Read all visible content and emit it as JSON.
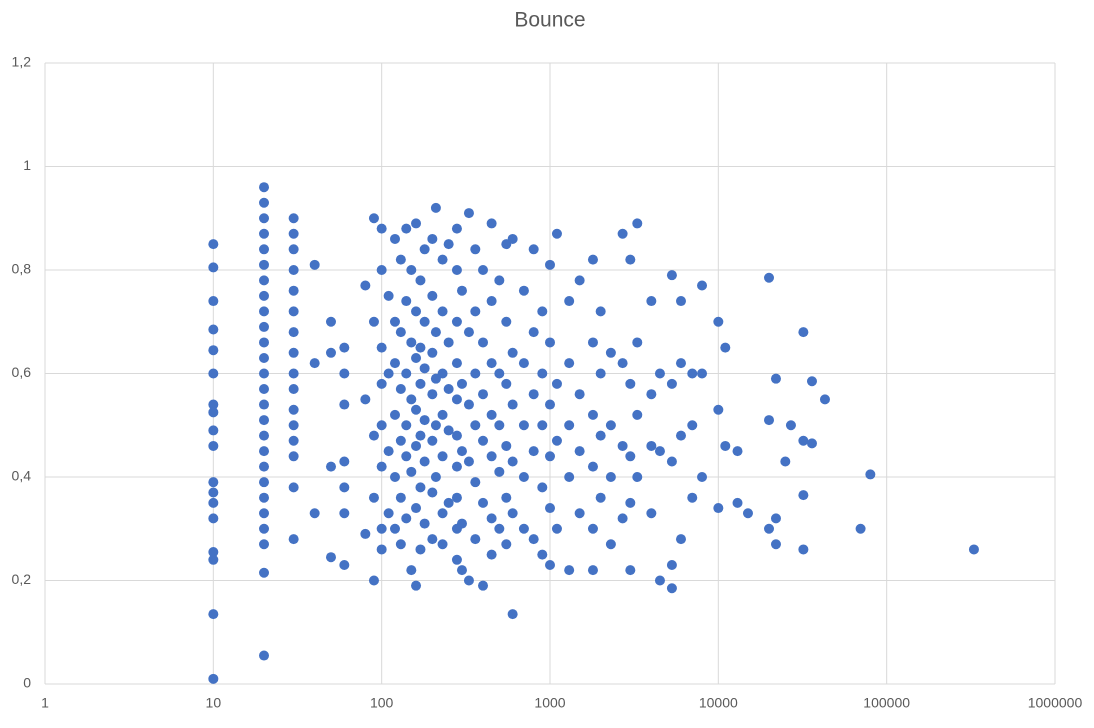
{
  "chart_data": {
    "type": "scatter",
    "title": "Bounce",
    "color": "#4472c4",
    "xscale": "log",
    "grid": true,
    "xlim": [
      1,
      1000000
    ],
    "xticks": [
      1,
      10,
      100,
      1000,
      10000,
      100000,
      1000000
    ],
    "ylim": [
      0,
      1.2
    ],
    "yticks": [
      0,
      {
        "value": 0.2,
        "label": "0,2"
      },
      {
        "value": 0.4,
        "label": "0,4"
      },
      {
        "value": 0.6,
        "label": "0,6"
      },
      {
        "value": 0.8,
        "label": "0,8"
      },
      1,
      {
        "value": 1.2,
        "label": "1,2"
      }
    ],
    "x": [
      10,
      10,
      10,
      10,
      10,
      10,
      10,
      10,
      10,
      10,
      10,
      10,
      10,
      10,
      10,
      10,
      10,
      10,
      20,
      20,
      20,
      20,
      20,
      20,
      20,
      20,
      20,
      20,
      20,
      20,
      20,
      20,
      20,
      20,
      20,
      20,
      20,
      20,
      20,
      20,
      20,
      20,
      20,
      20,
      30,
      30,
      30,
      30,
      30,
      30,
      30,
      30,
      30,
      30,
      30,
      30,
      30,
      30,
      30,
      30,
      40,
      40,
      40,
      50,
      50,
      50,
      50,
      60,
      60,
      60,
      60,
      60,
      60,
      60,
      80,
      80,
      80,
      90,
      90,
      90,
      90,
      90,
      100,
      100,
      100,
      100,
      100,
      100,
      100,
      100,
      110,
      110,
      110,
      110,
      120,
      120,
      120,
      120,
      120,
      120,
      130,
      130,
      130,
      130,
      130,
      130,
      140,
      140,
      140,
      140,
      140,
      140,
      150,
      150,
      150,
      150,
      150,
      160,
      160,
      160,
      160,
      160,
      160,
      160,
      170,
      170,
      170,
      170,
      170,
      170,
      180,
      180,
      180,
      180,
      180,
      180,
      200,
      200,
      200,
      200,
      200,
      200,
      200,
      210,
      210,
      210,
      210,
      210,
      230,
      230,
      230,
      230,
      230,
      230,
      230,
      250,
      250,
      250,
      250,
      250,
      280,
      280,
      280,
      280,
      280,
      280,
      280,
      280,
      280,
      280,
      300,
      300,
      300,
      300,
      300,
      330,
      330,
      330,
      330,
      330,
      360,
      360,
      360,
      360,
      360,
      360,
      400,
      400,
      400,
      400,
      400,
      400,
      450,
      450,
      450,
      450,
      450,
      450,
      450,
      500,
      500,
      500,
      500,
      500,
      550,
      550,
      550,
      550,
      550,
      550,
      600,
      600,
      600,
      600,
      600,
      600,
      700,
      700,
      700,
      700,
      700,
      800,
      800,
      800,
      800,
      800,
      900,
      900,
      900,
      900,
      900,
      1000,
      1000,
      1000,
      1000,
      1000,
      1000,
      1100,
      1100,
      1100,
      1100,
      1300,
      1300,
      1300,
      1300,
      1300,
      1500,
      1500,
      1500,
      1500,
      1800,
      1800,
      1800,
      1800,
      1800,
      1800,
      2000,
      2000,
      2000,
      2000,
      2300,
      2300,
      2300,
      2300,
      2700,
      2700,
      2700,
      2700,
      3000,
      3000,
      3000,
      3000,
      3000,
      3300,
      3300,
      3300,
      3300,
      4000,
      4000,
      4000,
      4000,
      4500,
      4500,
      4500,
      5300,
      5300,
      5300,
      5300,
      5300,
      6000,
      6000,
      6000,
      6000,
      7000,
      7000,
      7000,
      8000,
      8000,
      8000,
      10000,
      10000,
      10000,
      11000,
      11000,
      13000,
      13000,
      15000,
      20000,
      20000,
      20000,
      22000,
      22000,
      22000,
      25000,
      27000,
      32000,
      32000,
      32000,
      32000,
      36000,
      36000,
      43000,
      70000,
      80000,
      330000
    ],
    "values": [
      0.85,
      0.805,
      0.74,
      0.685,
      0.645,
      0.6,
      0.54,
      0.525,
      0.49,
      0.46,
      0.39,
      0.37,
      0.35,
      0.32,
      0.255,
      0.24,
      0.135,
      0.01,
      0.96,
      0.93,
      0.9,
      0.87,
      0.84,
      0.81,
      0.78,
      0.75,
      0.72,
      0.69,
      0.66,
      0.63,
      0.6,
      0.57,
      0.54,
      0.51,
      0.48,
      0.45,
      0.42,
      0.39,
      0.36,
      0.33,
      0.3,
      0.27,
      0.215,
      0.055,
      0.9,
      0.87,
      0.84,
      0.8,
      0.76,
      0.72,
      0.68,
      0.64,
      0.6,
      0.57,
      0.53,
      0.5,
      0.47,
      0.44,
      0.38,
      0.28,
      0.81,
      0.62,
      0.33,
      0.7,
      0.64,
      0.42,
      0.245,
      0.65,
      0.6,
      0.54,
      0.43,
      0.38,
      0.33,
      0.23,
      0.77,
      0.55,
      0.29,
      0.9,
      0.7,
      0.48,
      0.36,
      0.2,
      0.88,
      0.8,
      0.65,
      0.58,
      0.5,
      0.42,
      0.3,
      0.26,
      0.75,
      0.6,
      0.45,
      0.33,
      0.86,
      0.7,
      0.62,
      0.52,
      0.4,
      0.3,
      0.82,
      0.68,
      0.57,
      0.47,
      0.36,
      0.27,
      0.88,
      0.74,
      0.6,
      0.5,
      0.44,
      0.32,
      0.8,
      0.66,
      0.55,
      0.41,
      0.22,
      0.89,
      0.72,
      0.63,
      0.53,
      0.46,
      0.34,
      0.19,
      0.78,
      0.65,
      0.58,
      0.48,
      0.38,
      0.26,
      0.84,
      0.7,
      0.61,
      0.51,
      0.43,
      0.31,
      0.86,
      0.75,
      0.64,
      0.56,
      0.47,
      0.37,
      0.28,
      0.92,
      0.68,
      0.59,
      0.5,
      0.4,
      0.82,
      0.72,
      0.6,
      0.52,
      0.44,
      0.33,
      0.27,
      0.85,
      0.66,
      0.57,
      0.49,
      0.35,
      0.88,
      0.8,
      0.7,
      0.62,
      0.55,
      0.48,
      0.42,
      0.36,
      0.3,
      0.24,
      0.76,
      0.58,
      0.45,
      0.31,
      0.22,
      0.91,
      0.68,
      0.54,
      0.43,
      0.2,
      0.84,
      0.72,
      0.6,
      0.5,
      0.39,
      0.28,
      0.8,
      0.66,
      0.56,
      0.47,
      0.35,
      0.19,
      0.89,
      0.74,
      0.62,
      0.52,
      0.44,
      0.32,
      0.25,
      0.78,
      0.6,
      0.5,
      0.41,
      0.3,
      0.85,
      0.7,
      0.58,
      0.46,
      0.36,
      0.27,
      0.86,
      0.64,
      0.54,
      0.43,
      0.33,
      0.135,
      0.76,
      0.62,
      0.5,
      0.4,
      0.3,
      0.84,
      0.68,
      0.56,
      0.45,
      0.28,
      0.72,
      0.6,
      0.5,
      0.38,
      0.25,
      0.81,
      0.66,
      0.54,
      0.44,
      0.34,
      0.23,
      0.87,
      0.58,
      0.47,
      0.3,
      0.74,
      0.62,
      0.5,
      0.4,
      0.22,
      0.78,
      0.56,
      0.45,
      0.33,
      0.82,
      0.66,
      0.52,
      0.42,
      0.3,
      0.22,
      0.72,
      0.6,
      0.48,
      0.36,
      0.64,
      0.5,
      0.4,
      0.27,
      0.87,
      0.62,
      0.46,
      0.32,
      0.82,
      0.58,
      0.44,
      0.35,
      0.22,
      0.89,
      0.66,
      0.52,
      0.4,
      0.74,
      0.56,
      0.46,
      0.33,
      0.6,
      0.45,
      0.2,
      0.79,
      0.58,
      0.43,
      0.23,
      0.185,
      0.74,
      0.62,
      0.48,
      0.28,
      0.6,
      0.5,
      0.36,
      0.77,
      0.6,
      0.4,
      0.7,
      0.53,
      0.34,
      0.65,
      0.46,
      0.45,
      0.35,
      0.33,
      0.785,
      0.51,
      0.3,
      0.59,
      0.27,
      0.32,
      0.43,
      0.5,
      0.68,
      0.47,
      0.365,
      0.26,
      0.585,
      0.465,
      0.55,
      0.3,
      0.405,
      0.26
    ]
  }
}
